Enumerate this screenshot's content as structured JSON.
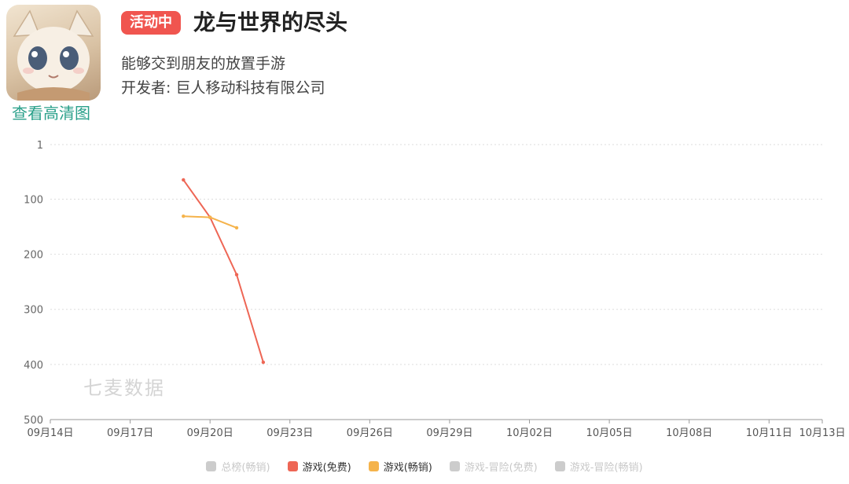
{
  "app": {
    "status_badge": "活动中",
    "title": "龙与世界的尽头",
    "subtitle": "能够交到朋友的放置手游",
    "developer": "开发者: 巨人移动科技有限公司",
    "view_hd_link": "查看高清图"
  },
  "watermark": "七麦数据",
  "chart_data": {
    "type": "line",
    "y_axis": {
      "inverted": true,
      "range": [
        1,
        500
      ],
      "ticks": [
        "1",
        "100",
        "200",
        "300",
        "400",
        "500"
      ]
    },
    "x_axis": {
      "range": [
        "2024-09-14",
        "2024-10-13"
      ],
      "tick_labels": [
        "09月14日",
        "09月17日",
        "09月20日",
        "09月23日",
        "09月26日",
        "09月29日",
        "10月02日",
        "10月05日",
        "10月08日",
        "10月11日",
        "10月13日"
      ]
    },
    "grid": "horizontal-dashed",
    "legend_position": "bottom",
    "series": [
      {
        "name": "总榜(畅销)",
        "color": "#cccccc",
        "active": false,
        "points": []
      },
      {
        "name": "游戏(免费)",
        "color": "#ee6655",
        "active": true,
        "points": [
          {
            "x": "2024-09-19",
            "y": 65
          },
          {
            "x": "2024-09-20",
            "y": 133
          },
          {
            "x": "2024-09-21",
            "y": 237
          },
          {
            "x": "2024-09-22",
            "y": 396
          }
        ]
      },
      {
        "name": "游戏(畅销)",
        "color": "#f5b34b",
        "active": true,
        "points": [
          {
            "x": "2024-09-19",
            "y": 131
          },
          {
            "x": "2024-09-20",
            "y": 133
          },
          {
            "x": "2024-09-21",
            "y": 152
          }
        ]
      },
      {
        "name": "游戏-冒险(免费)",
        "color": "#cccccc",
        "active": false,
        "points": []
      },
      {
        "name": "游戏-冒险(畅销)",
        "color": "#cccccc",
        "active": false,
        "points": []
      }
    ]
  }
}
